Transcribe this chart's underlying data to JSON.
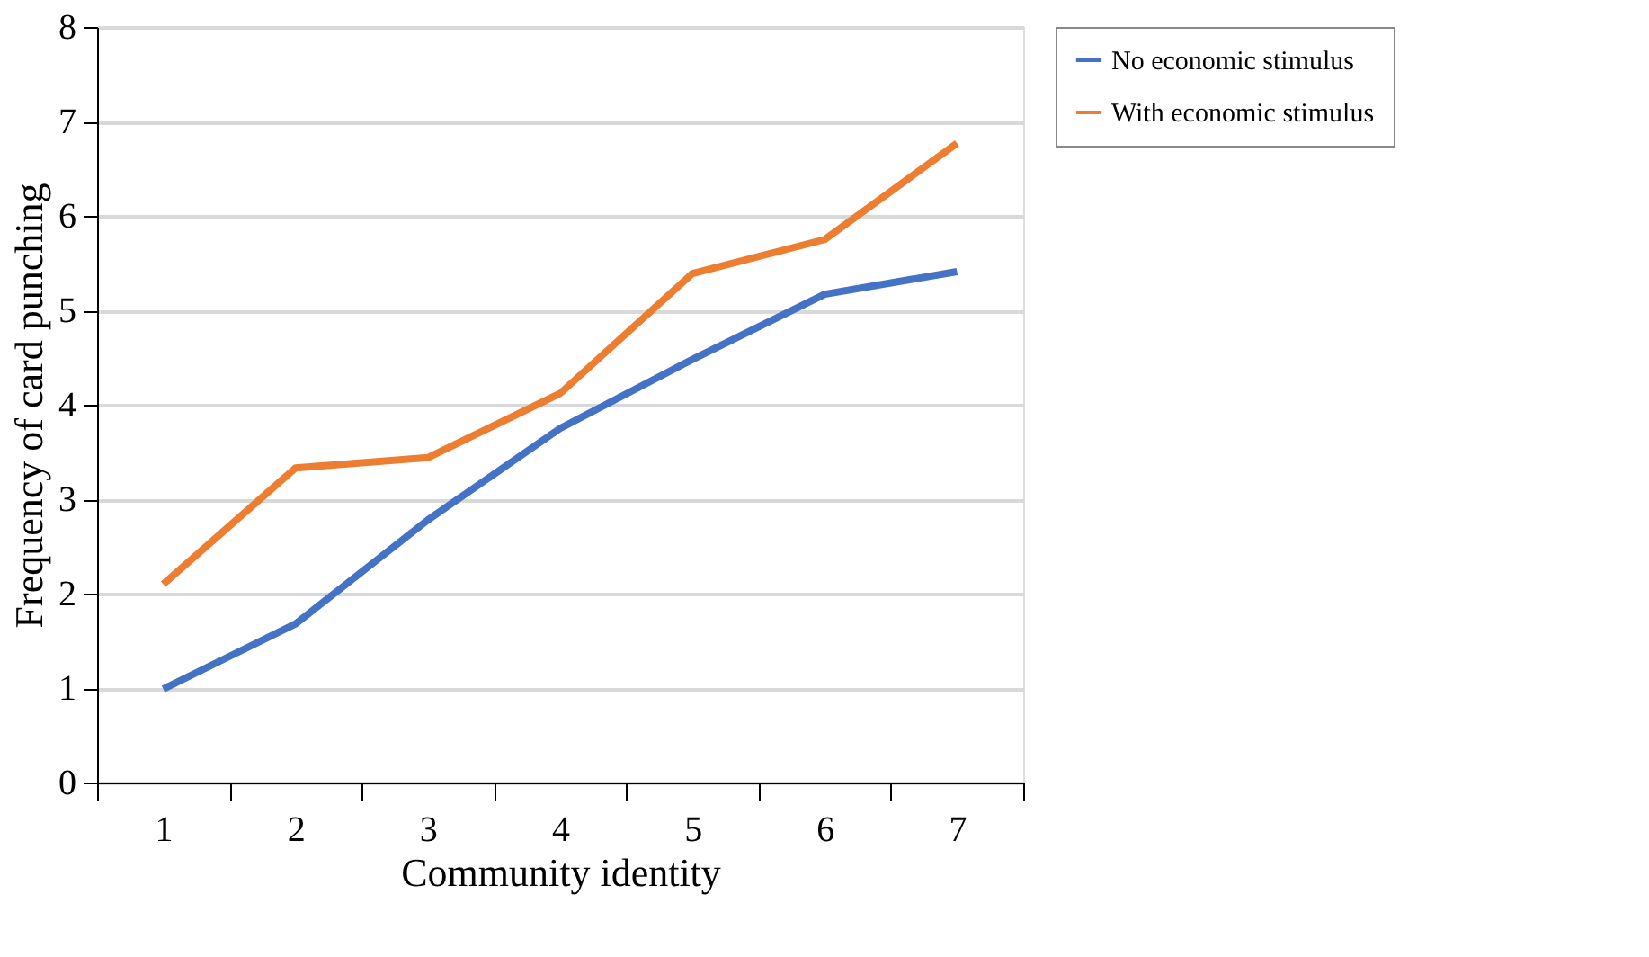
{
  "chart_data": {
    "type": "line",
    "xlabel": "Community identity",
    "ylabel": "Frequency of card punching",
    "categories": [
      "1",
      "2",
      "3",
      "4",
      "5",
      "6",
      "7"
    ],
    "series": [
      {
        "name": "No economic stimulus",
        "color": "#4472c4",
        "values": [
          0.99,
          1.68,
          2.78,
          3.75,
          4.48,
          5.17,
          5.41
        ]
      },
      {
        "name": "With economic stimulus",
        "color": "#ed7d31",
        "values": [
          2.1,
          3.33,
          3.44,
          4.12,
          5.39,
          5.75,
          6.77
        ]
      }
    ],
    "ylim": [
      0,
      8
    ],
    "yticks": [
      0,
      1,
      2,
      3,
      4,
      5,
      6,
      7,
      8
    ],
    "grid": "y",
    "legend": "top right",
    "marker": "none",
    "line_style": "solid"
  }
}
